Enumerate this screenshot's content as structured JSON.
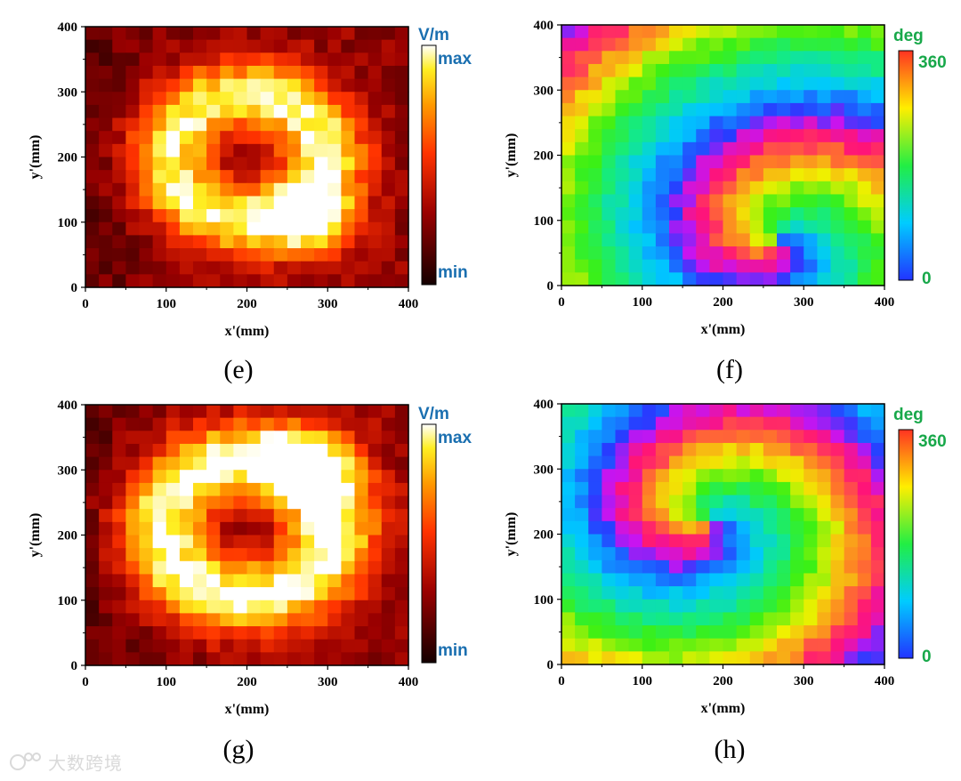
{
  "panels": [
    {
      "id": "e",
      "label": "(e)",
      "kind": "magnitude",
      "colorbar_unit": "V/m",
      "colorbar_top": "max",
      "colorbar_bottom": "min"
    },
    {
      "id": "f",
      "label": "(f)",
      "kind": "phase",
      "colorbar_unit": "deg",
      "colorbar_top": "360",
      "colorbar_bottom": "0"
    },
    {
      "id": "g",
      "label": "(g)",
      "kind": "magnitude",
      "colorbar_unit": "V/m",
      "colorbar_top": "max",
      "colorbar_bottom": "min"
    },
    {
      "id": "h",
      "label": "(h)",
      "kind": "phase",
      "colorbar_unit": "deg",
      "colorbar_top": "360",
      "colorbar_bottom": "0"
    }
  ],
  "axes": {
    "xlabel": "x'(mm)",
    "ylabel": "y'(mm)",
    "xticks": [
      "0",
      "100",
      "200",
      "300",
      "400"
    ],
    "yticks": [
      "0",
      "100",
      "200",
      "300",
      "400"
    ]
  },
  "colors": {
    "magnitude_unit_color": "#1a6fb0",
    "phase_unit_color": "#18a84a"
  },
  "chart_data": [
    {
      "type": "heatmap",
      "panel": "e",
      "colormap": "hot",
      "xlim": [
        0,
        400
      ],
      "ylim": [
        0,
        400
      ],
      "grid": "24x20",
      "features": [
        {
          "kind": "ring",
          "cx": 200,
          "cy": 200,
          "r": 95,
          "width": 55,
          "weight": 0.7
        },
        {
          "kind": "peak",
          "x": 280,
          "y": 100,
          "radius": 55,
          "weight": 0.5
        }
      ]
    },
    {
      "type": "heatmap",
      "panel": "f",
      "colormap": "jet",
      "range": [
        0,
        360
      ],
      "xlim": [
        0,
        400
      ],
      "ylim": [
        0,
        400
      ],
      "grid": "24x20",
      "features": [
        {
          "kind": "vortex",
          "x": 270,
          "y": 70
        }
      ]
    },
    {
      "type": "heatmap",
      "panel": "g",
      "colormap": "hot",
      "xlim": [
        0,
        400
      ],
      "ylim": [
        0,
        400
      ],
      "grid": "24x20",
      "features": [
        {
          "kind": "ring",
          "cx": 200,
          "cy": 210,
          "r": 105,
          "width": 60,
          "weight": 0.75
        },
        {
          "kind": "peak",
          "x": 280,
          "y": 310,
          "radius": 60,
          "weight": 0.45
        }
      ]
    },
    {
      "type": "heatmap",
      "panel": "h",
      "colormap": "jet",
      "range": [
        0,
        360
      ],
      "xlim": [
        0,
        400
      ],
      "ylim": [
        0,
        400
      ],
      "grid": "24x20",
      "features": [
        {
          "kind": "vortex",
          "x": 180,
          "y": 220
        }
      ]
    }
  ],
  "watermark": "大数跨境"
}
